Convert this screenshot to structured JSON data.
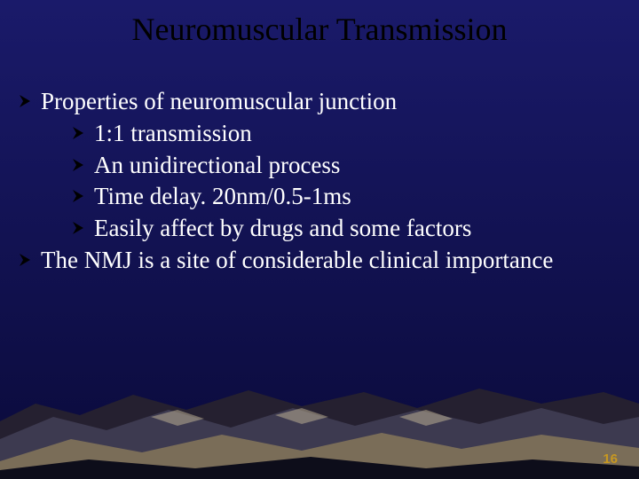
{
  "slide": {
    "title": "Neuromuscular Transmission",
    "title_color": "#000000",
    "title_fontsize": 36,
    "body_color": "#ffffff",
    "body_fontsize": 27,
    "bullets": [
      {
        "level": 1,
        "text": "Properties of neuromuscular junction"
      },
      {
        "level": 2,
        "text": "1:1 transmission"
      },
      {
        "level": 2,
        "text": " An unidirectional process"
      },
      {
        "level": 2,
        "text": "Time delay. 20nm/0.5-1ms"
      },
      {
        "level": 2,
        "text": "Easily affect by drugs and some factors"
      },
      {
        "level": 1,
        "text": "The NMJ is a site of considerable clinical importance"
      }
    ],
    "arrow_color": "#000000",
    "page_number": "16",
    "page_number_color": "#c89820",
    "page_number_fontsize": 15
  },
  "background": {
    "sky_top_color": "#1a1a6a",
    "sky_bottom_color": "#0a0a3a",
    "mountain_dark": "#0d0d1a",
    "mountain_mid": "#3d3a50",
    "mountain_light": "#7a6d58",
    "mountain_highlight": "#c5b898",
    "mountain_shadow": "#252030"
  }
}
